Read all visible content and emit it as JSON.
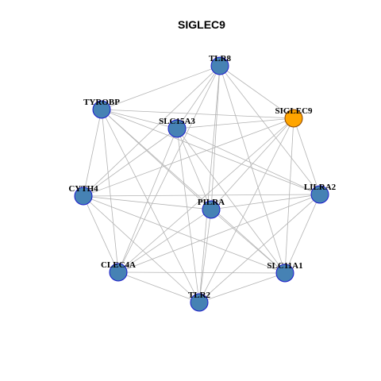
{
  "title": "SIGLEC9",
  "colors": {
    "node_fill": "#4682b4",
    "node_border": "#1a1acc",
    "hub_fill": "#ffa500",
    "hub_border": "#8b4500",
    "edge": "#b3b3b3"
  },
  "nodes": [
    {
      "id": "TLR8",
      "label": "TLR8",
      "hub": false
    },
    {
      "id": "TYROBP",
      "label": "TYROBP",
      "hub": false
    },
    {
      "id": "SIGLEC9",
      "label": "SIGLEC9",
      "hub": true
    },
    {
      "id": "SLC15A3",
      "label": "SLC15A3",
      "hub": false
    },
    {
      "id": "CYTH4",
      "label": "CYTH4",
      "hub": false
    },
    {
      "id": "LILRA2",
      "label": "LILRA2",
      "hub": false
    },
    {
      "id": "PILRA",
      "label": "PILRA",
      "hub": false
    },
    {
      "id": "CLEC4A",
      "label": "CLEC4A",
      "hub": false
    },
    {
      "id": "SLC11A1",
      "label": "SLC11A1",
      "hub": false
    },
    {
      "id": "TLR2",
      "label": "TLR2",
      "hub": false
    }
  ],
  "edges": [
    [
      "TLR8",
      "TYROBP"
    ],
    [
      "TLR8",
      "SIGLEC9"
    ],
    [
      "TLR8",
      "SLC15A3"
    ],
    [
      "TLR8",
      "CYTH4"
    ],
    [
      "TLR8",
      "LILRA2"
    ],
    [
      "TLR8",
      "PILRA"
    ],
    [
      "TLR8",
      "CLEC4A"
    ],
    [
      "TLR8",
      "SLC11A1"
    ],
    [
      "TLR8",
      "TLR2"
    ],
    [
      "TYROBP",
      "SIGLEC9"
    ],
    [
      "TYROBP",
      "SLC15A3"
    ],
    [
      "TYROBP",
      "CYTH4"
    ],
    [
      "TYROBP",
      "LILRA2"
    ],
    [
      "TYROBP",
      "PILRA"
    ],
    [
      "TYROBP",
      "CLEC4A"
    ],
    [
      "TYROBP",
      "SLC11A1"
    ],
    [
      "TYROBP",
      "TLR2"
    ],
    [
      "SIGLEC9",
      "SLC15A3"
    ],
    [
      "SIGLEC9",
      "CYTH4"
    ],
    [
      "SIGLEC9",
      "LILRA2"
    ],
    [
      "SIGLEC9",
      "PILRA"
    ],
    [
      "SIGLEC9",
      "CLEC4A"
    ],
    [
      "SIGLEC9",
      "SLC11A1"
    ],
    [
      "SIGLEC9",
      "TLR2"
    ],
    [
      "SLC15A3",
      "CYTH4"
    ],
    [
      "SLC15A3",
      "LILRA2"
    ],
    [
      "SLC15A3",
      "PILRA"
    ],
    [
      "SLC15A3",
      "CLEC4A"
    ],
    [
      "SLC15A3",
      "SLC11A1"
    ],
    [
      "SLC15A3",
      "TLR2"
    ],
    [
      "CYTH4",
      "LILRA2"
    ],
    [
      "CYTH4",
      "PILRA"
    ],
    [
      "CYTH4",
      "CLEC4A"
    ],
    [
      "CYTH4",
      "SLC11A1"
    ],
    [
      "CYTH4",
      "TLR2"
    ],
    [
      "LILRA2",
      "PILRA"
    ],
    [
      "LILRA2",
      "CLEC4A"
    ],
    [
      "LILRA2",
      "SLC11A1"
    ],
    [
      "LILRA2",
      "TLR2"
    ],
    [
      "PILRA",
      "CLEC4A"
    ],
    [
      "PILRA",
      "SLC11A1"
    ],
    [
      "PILRA",
      "TLR2"
    ],
    [
      "CLEC4A",
      "SLC11A1"
    ],
    [
      "CLEC4A",
      "TLR2"
    ],
    [
      "SLC11A1",
      "TLR2"
    ]
  ]
}
